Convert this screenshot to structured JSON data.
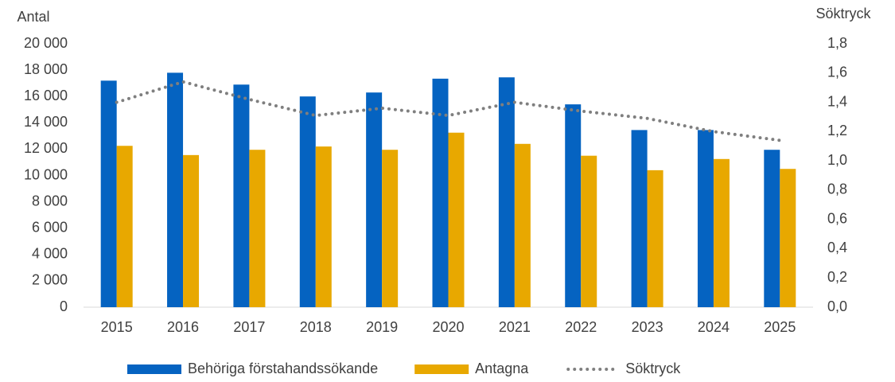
{
  "chart_data": {
    "type": "bar",
    "y_label": "Antal",
    "y2_label": "Söktryck",
    "categories": [
      "2015",
      "2016",
      "2017",
      "2018",
      "2019",
      "2020",
      "2021",
      "2022",
      "2023",
      "2024",
      "2025"
    ],
    "series": [
      {
        "name": "Behöriga förstahandssökande",
        "color": "#0563C1",
        "type": "bar",
        "values": [
          17200,
          17800,
          16900,
          16000,
          16300,
          17350,
          17450,
          15400,
          13450,
          13450,
          11950
        ]
      },
      {
        "name": "Antagna",
        "color": "#E8A800",
        "type": "bar",
        "values": [
          12250,
          11550,
          11950,
          12200,
          11950,
          13250,
          12400,
          11500,
          10400,
          11250,
          10500
        ]
      },
      {
        "name": "Söktryck",
        "color": "#7F7F7F",
        "type": "line",
        "axis": "y2",
        "dotted": true,
        "values": [
          1.4,
          1.54,
          1.42,
          1.31,
          1.36,
          1.31,
          1.4,
          1.34,
          1.29,
          1.2,
          1.14
        ]
      }
    ],
    "ylim": [
      0,
      20000
    ],
    "yticks": [
      0,
      {
        "value": 2000,
        "label": "2 000"
      },
      {
        "value": 4000,
        "label": "4 000"
      },
      {
        "value": 6000,
        "label": "6 000"
      },
      {
        "value": 8000,
        "label": "8 000"
      },
      {
        "value": 10000,
        "label": "10 000"
      },
      {
        "value": 12000,
        "label": "12 000"
      },
      {
        "value": 14000,
        "label": "14 000"
      },
      {
        "value": 16000,
        "label": "16 000"
      },
      {
        "value": 18000,
        "label": "18 000"
      },
      {
        "value": 20000,
        "label": "20 000"
      }
    ],
    "y2lim": [
      0,
      1.8
    ],
    "y2ticks": [
      {
        "value": 0,
        "label": "0,0"
      },
      {
        "value": 0.2,
        "label": "0,2"
      },
      {
        "value": 0.4,
        "label": "0,4"
      },
      {
        "value": 0.6,
        "label": "0,6"
      },
      {
        "value": 0.8,
        "label": "0,8"
      },
      {
        "value": 1.0,
        "label": "1,0"
      },
      {
        "value": 1.2,
        "label": "1,2"
      },
      {
        "value": 1.4,
        "label": "1,4"
      },
      {
        "value": 1.6,
        "label": "1,6"
      },
      {
        "value": 1.8,
        "label": "1,8"
      }
    ],
    "grid": false,
    "legend": "bottom"
  }
}
